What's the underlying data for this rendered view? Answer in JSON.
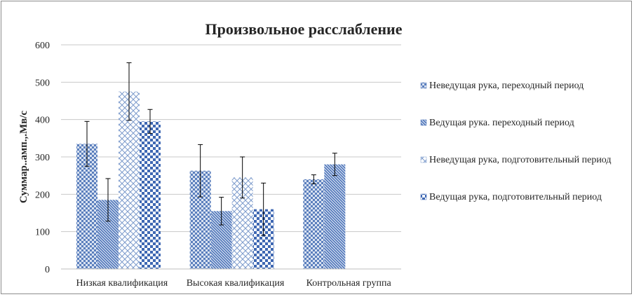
{
  "chart_data": {
    "type": "bar",
    "title": "Произвольное расслабление",
    "xlabel": "",
    "ylabel": "Суммар..амп.,.Мв/с",
    "ylim": [
      0,
      600
    ],
    "yticks": [
      0,
      100,
      200,
      300,
      400,
      500,
      600
    ],
    "grid": true,
    "legend_position": "right",
    "categories": [
      "Низкая квалификация",
      "Высокая квалификация",
      "Контрольная группа"
    ],
    "series": [
      {
        "name": "Неведущая рука, переходный период",
        "values": [
          335,
          263,
          240
        ],
        "error": [
          60,
          70,
          12
        ],
        "color": "#5b7fbd",
        "pattern": "checker"
      },
      {
        "name": "Ведущая рука. переходный период",
        "values": [
          185,
          155,
          280
        ],
        "error": [
          57,
          37,
          30
        ],
        "color": "#4a72b8",
        "pattern": "diagonal"
      },
      {
        "name": "Неведущая рука, подготовительный период",
        "values": [
          475,
          245,
          null
        ],
        "error": [
          77,
          55,
          null
        ],
        "color": "#7d9bcc",
        "pattern": "lattice"
      },
      {
        "name": "Ведущая рука, подготовительный период",
        "values": [
          395,
          160,
          null
        ],
        "error": [
          32,
          70,
          null
        ],
        "color": "#3f68b3",
        "pattern": "bigchecker"
      }
    ]
  }
}
